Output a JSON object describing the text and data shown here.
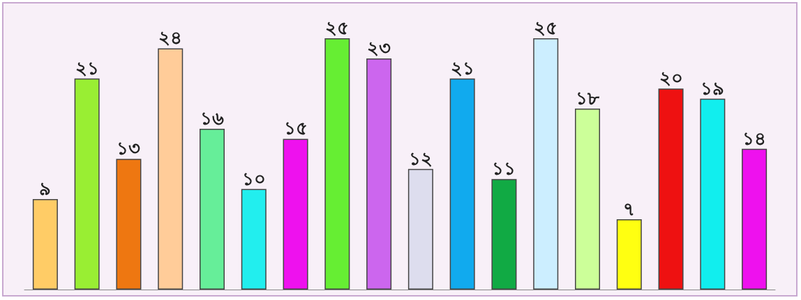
{
  "chart_data": {
    "type": "bar",
    "categories": [
      null,
      null,
      null,
      null,
      null,
      null,
      null,
      null,
      null,
      null,
      null,
      null,
      null,
      null,
      null,
      null,
      null,
      null
    ],
    "values": [
      9,
      21,
      13,
      24,
      16,
      10,
      15,
      25,
      23,
      12,
      21,
      11,
      25,
      18,
      7,
      20,
      19,
      14
    ],
    "colors": [
      "#ffcc66",
      "#99ee33",
      "#ee7711",
      "#ffcc99",
      "#66ee99",
      "#22eeee",
      "#ee11ee",
      "#66ee33",
      "#cc66ee",
      "#ddddee",
      "#11aaee",
      "#11aa44",
      "#cceeff",
      "#ccff99",
      "#ffff11",
      "#ee1111",
      "#11eeee",
      "#ee11ee"
    ],
    "value_labels": [
      "৯",
      "২১",
      "১৩",
      "২৪",
      "১৬",
      "১০",
      "১৫",
      "২৫",
      "২৩",
      "১২",
      "২১",
      "১১",
      "২৫",
      "১৮",
      "৭",
      "২০",
      "১৯",
      "১৪"
    ],
    "grid": false
  }
}
